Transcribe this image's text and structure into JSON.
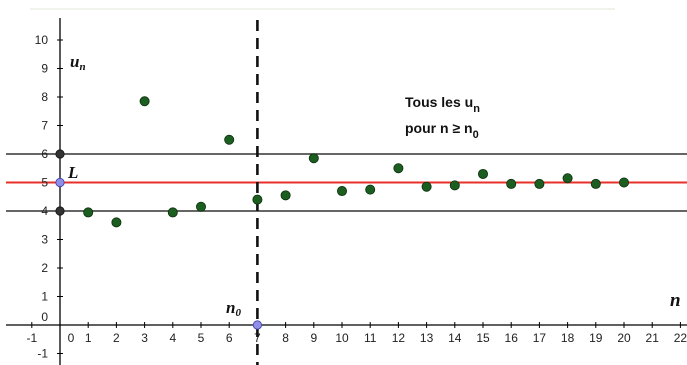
{
  "chart_data": {
    "type": "scatter",
    "xlim": [
      -1,
      22
    ],
    "ylim": [
      -1,
      10
    ],
    "x_ticks": [
      "-1",
      "0",
      "1",
      "2",
      "3",
      "4",
      "5",
      "6",
      "7",
      "8",
      "9",
      "10",
      "11",
      "12",
      "13",
      "14",
      "15",
      "16",
      "17",
      "18",
      "19",
      "20",
      "21",
      "22"
    ],
    "y_ticks": [
      "-1",
      "0",
      "1",
      "2",
      "3",
      "4",
      "5",
      "6",
      "7",
      "8",
      "9",
      "10"
    ],
    "points": [
      {
        "x": 1,
        "y": 3.95
      },
      {
        "x": 2,
        "y": 3.6
      },
      {
        "x": 3,
        "y": 7.85
      },
      {
        "x": 4,
        "y": 3.95
      },
      {
        "x": 5,
        "y": 4.15
      },
      {
        "x": 6,
        "y": 6.5
      },
      {
        "x": 7,
        "y": 4.4
      },
      {
        "x": 8,
        "y": 4.55
      },
      {
        "x": 9,
        "y": 5.85
      },
      {
        "x": 10,
        "y": 4.7
      },
      {
        "x": 11,
        "y": 4.75
      },
      {
        "x": 12,
        "y": 5.5
      },
      {
        "x": 13,
        "y": 4.85
      },
      {
        "x": 14,
        "y": 4.9
      },
      {
        "x": 15,
        "y": 5.3
      },
      {
        "x": 16,
        "y": 4.95
      },
      {
        "x": 17,
        "y": 4.95
      },
      {
        "x": 18,
        "y": 5.15
      },
      {
        "x": 19,
        "y": 4.95
      },
      {
        "x": 20,
        "y": 5.0
      }
    ],
    "limit_line": {
      "y": 5,
      "color": "#e8302b",
      "label": "L"
    },
    "band_lines": [
      4,
      6
    ],
    "n0": {
      "x": 7,
      "label_main": "n",
      "label_sub": "0"
    },
    "y_axis_label": {
      "main": "u",
      "sub": "n"
    },
    "x_axis_label": "n",
    "annotation": {
      "line1_prefix": "Tous les  u",
      "line1_sub": "n",
      "line2_prefix": "pour n ≥  n",
      "line2_sub": "0"
    },
    "colors": {
      "point": "#1b5e20",
      "band": "#333333",
      "axis": "#000000",
      "grid": "none",
      "axis_point": "#8f8fe8",
      "band_point": "#333333"
    }
  }
}
